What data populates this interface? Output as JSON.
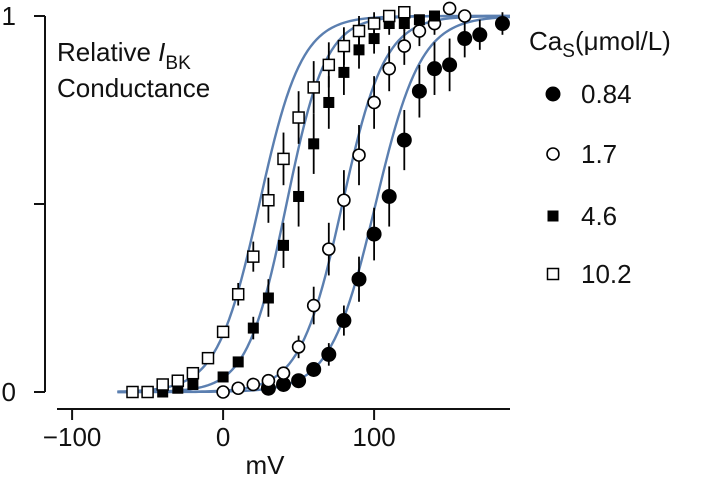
{
  "chart_data": {
    "type": "scatter",
    "title_lines": [
      "Relative ",
      "BK",
      "Conductance"
    ],
    "title_italic": "I",
    "xlabel": "mV",
    "ylabel": "",
    "xlim": [
      -110,
      190
    ],
    "ylim": [
      0,
      1
    ],
    "x_ticks": [
      -100,
      0,
      100
    ],
    "x_tick_labels": [
      "−100",
      "0",
      "100"
    ],
    "y_ticks": [
      0,
      0.5,
      1
    ],
    "y_tick_labels": [
      "0",
      "",
      "1"
    ],
    "grid": false,
    "legend_title": "Ca",
    "legend_title_sub": "S",
    "legend_title_unit": "(μmol/L)",
    "legend_position": "right",
    "fit_color": "#5b7fb0",
    "series": [
      {
        "name": "0.84",
        "marker": "filled-circle",
        "v_half": 101,
        "slope": 15,
        "points": [
          {
            "x": 30,
            "y": 0.01,
            "err": 0
          },
          {
            "x": 40,
            "y": 0.02,
            "err": 0
          },
          {
            "x": 50,
            "y": 0.03,
            "err": 0
          },
          {
            "x": 60,
            "y": 0.06,
            "err": 0
          },
          {
            "x": 70,
            "y": 0.1,
            "err": 0.03
          },
          {
            "x": 80,
            "y": 0.19,
            "err": 0.04
          },
          {
            "x": 90,
            "y": 0.3,
            "err": 0.06
          },
          {
            "x": 100,
            "y": 0.42,
            "err": 0.07
          },
          {
            "x": 110,
            "y": 0.52,
            "err": 0.08
          },
          {
            "x": 120,
            "y": 0.67,
            "err": 0.08
          },
          {
            "x": 130,
            "y": 0.8,
            "err": 0.07
          },
          {
            "x": 140,
            "y": 0.86,
            "err": 0.07
          },
          {
            "x": 150,
            "y": 0.87,
            "err": 0.07
          },
          {
            "x": 160,
            "y": 0.94,
            "err": 0.05
          },
          {
            "x": 170,
            "y": 0.95,
            "err": 0.04
          },
          {
            "x": 185,
            "y": 0.98,
            "err": 0.03
          }
        ]
      },
      {
        "name": "1.7",
        "marker": "open-circle",
        "v_half": 79,
        "slope": 14,
        "points": [
          {
            "x": 0,
            "y": 0,
            "err": 0
          },
          {
            "x": 10,
            "y": 0.01,
            "err": 0
          },
          {
            "x": 20,
            "y": 0.02,
            "err": 0
          },
          {
            "x": 30,
            "y": 0.03,
            "err": 0
          },
          {
            "x": 40,
            "y": 0.05,
            "err": 0
          },
          {
            "x": 50,
            "y": 0.12,
            "err": 0.03
          },
          {
            "x": 60,
            "y": 0.23,
            "err": 0.05
          },
          {
            "x": 70,
            "y": 0.38,
            "err": 0.07
          },
          {
            "x": 80,
            "y": 0.51,
            "err": 0.08
          },
          {
            "x": 90,
            "y": 0.63,
            "err": 0.08
          },
          {
            "x": 100,
            "y": 0.77,
            "err": 0.07
          },
          {
            "x": 110,
            "y": 0.86,
            "err": 0.06
          },
          {
            "x": 120,
            "y": 0.92,
            "err": 0.05
          },
          {
            "x": 130,
            "y": 0.96,
            "err": 0.04
          },
          {
            "x": 140,
            "y": 0.98,
            "err": 0.03
          },
          {
            "x": 150,
            "y": 1.02,
            "err": 0
          },
          {
            "x": 160,
            "y": 1.0,
            "err": 0
          }
        ]
      },
      {
        "name": "4.6",
        "marker": "filled-square",
        "v_half": 42,
        "slope": 13,
        "points": [
          {
            "x": -40,
            "y": 0,
            "err": 0
          },
          {
            "x": -30,
            "y": 0.01,
            "err": 0
          },
          {
            "x": -20,
            "y": 0.02,
            "err": 0
          },
          {
            "x": 0,
            "y": 0.04,
            "err": 0
          },
          {
            "x": 10,
            "y": 0.08,
            "err": 0
          },
          {
            "x": 20,
            "y": 0.17,
            "err": 0.03
          },
          {
            "x": 30,
            "y": 0.25,
            "err": 0.05
          },
          {
            "x": 40,
            "y": 0.39,
            "err": 0.06
          },
          {
            "x": 50,
            "y": 0.52,
            "err": 0.08
          },
          {
            "x": 60,
            "y": 0.66,
            "err": 0.08
          },
          {
            "x": 70,
            "y": 0.77,
            "err": 0.07
          },
          {
            "x": 80,
            "y": 0.85,
            "err": 0.06
          },
          {
            "x": 90,
            "y": 0.91,
            "err": 0.05
          },
          {
            "x": 100,
            "y": 0.94,
            "err": 0.04
          },
          {
            "x": 110,
            "y": 0.98,
            "err": 0.03
          },
          {
            "x": 120,
            "y": 0.98,
            "err": 0.02
          },
          {
            "x": 130,
            "y": 0.99,
            "err": 0
          },
          {
            "x": 140,
            "y": 1.0,
            "err": 0
          }
        ]
      },
      {
        "name": "10.2",
        "marker": "open-square",
        "v_half": 24,
        "slope": 14,
        "points": [
          {
            "x": -60,
            "y": 0,
            "err": 0
          },
          {
            "x": -50,
            "y": 0,
            "err": 0
          },
          {
            "x": -40,
            "y": 0.02,
            "err": 0
          },
          {
            "x": -30,
            "y": 0.03,
            "err": 0
          },
          {
            "x": -20,
            "y": 0.05,
            "err": 0
          },
          {
            "x": -10,
            "y": 0.09,
            "err": 0
          },
          {
            "x": 0,
            "y": 0.16,
            "err": 0
          },
          {
            "x": 10,
            "y": 0.26,
            "err": 0.03
          },
          {
            "x": 20,
            "y": 0.36,
            "err": 0.04
          },
          {
            "x": 30,
            "y": 0.51,
            "err": 0.06
          },
          {
            "x": 40,
            "y": 0.62,
            "err": 0.07
          },
          {
            "x": 50,
            "y": 0.73,
            "err": 0.07
          },
          {
            "x": 60,
            "y": 0.81,
            "err": 0.07
          },
          {
            "x": 70,
            "y": 0.87,
            "err": 0.06
          },
          {
            "x": 80,
            "y": 0.92,
            "err": 0.05
          },
          {
            "x": 90,
            "y": 0.96,
            "err": 0.04
          },
          {
            "x": 100,
            "y": 0.98,
            "err": 0.03
          },
          {
            "x": 110,
            "y": 1.0,
            "err": 0
          },
          {
            "x": 120,
            "y": 1.01,
            "err": 0
          }
        ]
      }
    ]
  }
}
